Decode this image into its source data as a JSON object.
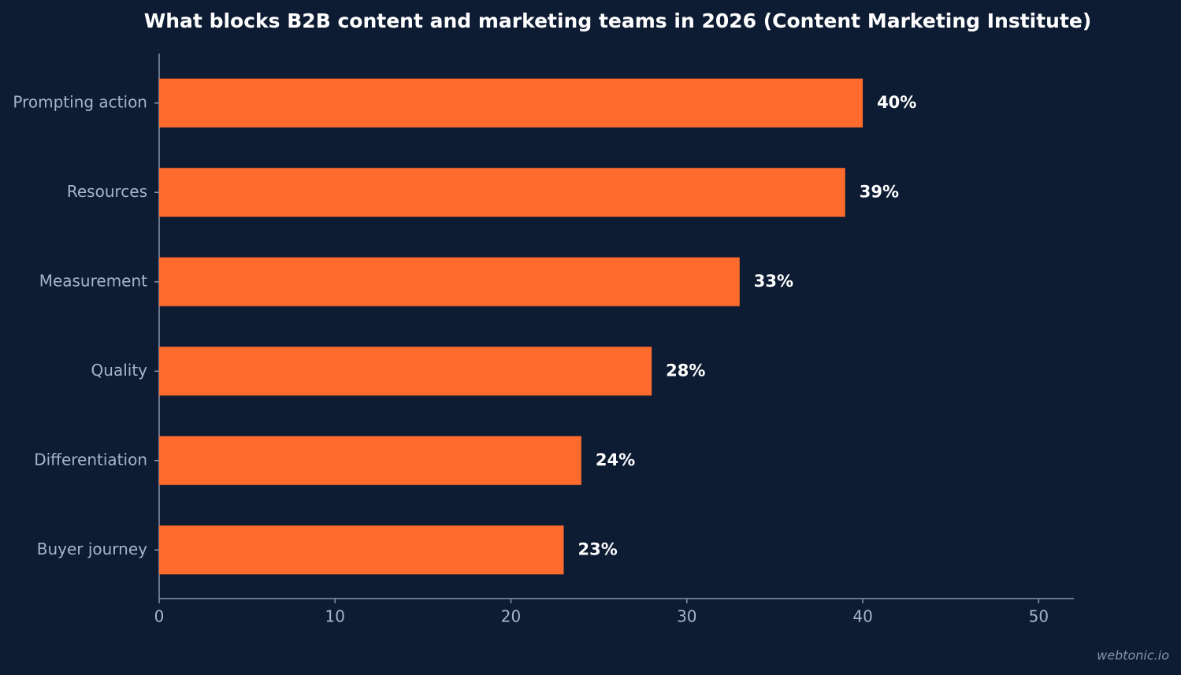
{
  "chart_data": {
    "type": "hbar",
    "title": "What blocks B2B content and marketing teams in 2026 (Content Marketing Institute)",
    "categories": [
      "Prompting action",
      "Resources",
      "Measurement",
      "Quality",
      "Differentiation",
      "Buyer journey"
    ],
    "values": [
      40,
      39,
      33,
      28,
      24,
      23
    ],
    "value_labels": [
      "40%",
      "39%",
      "33%",
      "28%",
      "24%",
      "23%"
    ],
    "color": "#ff6b2c",
    "xlim": [
      0,
      52
    ],
    "xticks": [
      0,
      10,
      20,
      30,
      40,
      50
    ],
    "credit": "webtonic.io"
  }
}
